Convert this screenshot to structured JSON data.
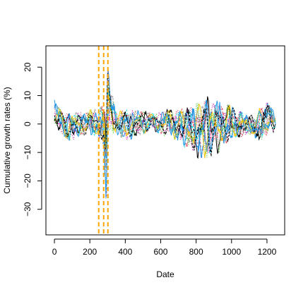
{
  "chart_data": {
    "type": "line",
    "title": "",
    "xlabel": "Date",
    "ylabel": "Cumulative growth rates (%)",
    "xlim": [
      -48,
      1300
    ],
    "ylim": [
      -39,
      27.5
    ],
    "x_ticks": [
      0,
      200,
      400,
      600,
      800,
      1000,
      1200
    ],
    "y_ticks": [
      -30,
      -20,
      -10,
      0,
      10,
      20
    ],
    "grid": false,
    "legend": "none",
    "x_range": [
      0,
      1250
    ],
    "series_count": 12,
    "series_colors": [
      "#000000",
      "#DF536B",
      "#61D04F",
      "#2297E6",
      "#28E2E5",
      "#CD0BBC",
      "#F5C710",
      "#9E9E9E",
      "#DF536B",
      "#2297E6",
      "#000000",
      "#61D04F"
    ],
    "envelope_profile": [
      {
        "x": 0,
        "upper": 9,
        "lower": -2
      },
      {
        "x": 50,
        "upper": 4,
        "lower": -5
      },
      {
        "x": 100,
        "upper": 5,
        "lower": -6
      },
      {
        "x": 150,
        "upper": 4,
        "lower": -4
      },
      {
        "x": 200,
        "upper": 5,
        "lower": -4
      },
      {
        "x": 250,
        "upper": 6,
        "lower": -5
      },
      {
        "x": 280,
        "upper": 8,
        "lower": -8
      },
      {
        "x": 292,
        "upper": 3,
        "lower": -34
      },
      {
        "x": 300,
        "upper": 22,
        "lower": -8
      },
      {
        "x": 320,
        "upper": 12,
        "lower": -4
      },
      {
        "x": 360,
        "upper": 5,
        "lower": -4
      },
      {
        "x": 400,
        "upper": 5,
        "lower": -6
      },
      {
        "x": 450,
        "upper": 5,
        "lower": -5
      },
      {
        "x": 500,
        "upper": 5,
        "lower": -4
      },
      {
        "x": 550,
        "upper": 4,
        "lower": -2
      },
      {
        "x": 600,
        "upper": 4,
        "lower": -4
      },
      {
        "x": 650,
        "upper": 6,
        "lower": -5
      },
      {
        "x": 700,
        "upper": 6,
        "lower": -6
      },
      {
        "x": 760,
        "upper": 6,
        "lower": -10
      },
      {
        "x": 800,
        "upper": 8,
        "lower": -12
      },
      {
        "x": 850,
        "upper": 10,
        "lower": -13
      },
      {
        "x": 900,
        "upper": 9,
        "lower": -12
      },
      {
        "x": 950,
        "upper": 8,
        "lower": -9
      },
      {
        "x": 1000,
        "upper": 7,
        "lower": -6
      },
      {
        "x": 1050,
        "upper": 5,
        "lower": -5
      },
      {
        "x": 1100,
        "upper": 3,
        "lower": -4
      },
      {
        "x": 1150,
        "upper": 5,
        "lower": -6
      },
      {
        "x": 1200,
        "upper": 9,
        "lower": -5
      },
      {
        "x": 1250,
        "upper": 3,
        "lower": -2
      }
    ],
    "vertical_reference_lines": {
      "x": [
        250,
        278,
        302
      ],
      "color": "#FFA500",
      "style": "dashed"
    }
  }
}
